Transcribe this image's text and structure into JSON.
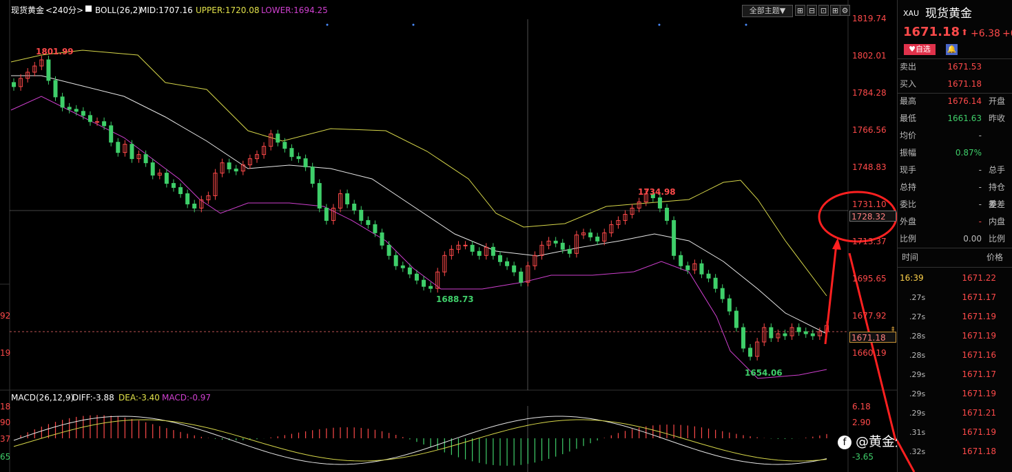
{
  "toolbar": {
    "symbol": "现货黄金",
    "period": "<240分>",
    "indicator": "BOLL(26,2)",
    "mid": "MID:1707.16",
    "upper": "UPPER:1720.08",
    "lower": "LOWER:1694.25",
    "theme_button": "全部主题▼"
  },
  "price_axis": [
    "1819.74",
    "1802.01",
    "1784.28",
    "1766.56",
    "1748.83",
    "1731.10",
    "1713.37",
    "1695.65",
    "1677.92",
    "1660.19"
  ],
  "left_axis_partial": [
    "92",
    "19"
  ],
  "crosshair_price": "1728.32",
  "current_price_tag": "1671.18",
  "annotations": {
    "high1": "1801.99",
    "low1": "1688.73",
    "high2": "1734.98",
    "low2": "1654.06"
  },
  "macd": {
    "label": "MACD(26,12,9)",
    "diff": "DIFF:-3.88",
    "dea": "DEA:-3.40",
    "macd": "MACD:-0.97",
    "axis": [
      "6.18",
      "2.90",
      "-3.65"
    ],
    "left_axis_partial": [
      "18",
      "90",
      "37",
      "65"
    ]
  },
  "quote": {
    "code": "XAU",
    "name": "现货黄金",
    "price": "1671.18",
    "arrow": "⬆",
    "change": "+6.38",
    "change_pct_partial": "+0",
    "fav_button": "自选",
    "rows": [
      {
        "label": "卖出",
        "value": "1671.53",
        "color": "red",
        "right": ""
      },
      {
        "label": "买入",
        "value": "1671.18",
        "color": "red",
        "right": ""
      },
      {
        "label": "最高",
        "value": "1676.14",
        "color": "red",
        "right": "开盘"
      },
      {
        "label": "最低",
        "value": "1661.63",
        "color": "green",
        "right": "昨收"
      },
      {
        "label": "均价",
        "value": "-",
        "color": "gray",
        "right": ""
      },
      {
        "label": "振幅",
        "value": "0.87%",
        "color": "green",
        "right": ""
      },
      {
        "label": "现手",
        "value": "-",
        "color": "gray",
        "right": "总手"
      },
      {
        "label": "总持",
        "value": "-",
        "color": "gray",
        "right": "持仓差"
      },
      {
        "label": "委比",
        "value": "-",
        "color": "gray",
        "right": "委差"
      },
      {
        "label": "外盘",
        "value": "-",
        "color": "red",
        "right": "内盘"
      },
      {
        "label": "比例",
        "value": "0.00",
        "color": "gray",
        "right": "比例"
      }
    ],
    "ticks_header": {
      "time": "时间",
      "price": "价格"
    },
    "ticks": [
      {
        "time": "16:39",
        "price": "1671.22"
      },
      {
        "time": ".27s",
        "price": "1671.17"
      },
      {
        "time": ".27s",
        "price": "1671.19"
      },
      {
        "time": ".28s",
        "price": "1671.19"
      },
      {
        "time": ".28s",
        "price": "1671.16"
      },
      {
        "time": ".29s",
        "price": "1671.17"
      },
      {
        "time": ".29s",
        "price": "1671.19"
      },
      {
        "time": ".29s",
        "price": "1671.21"
      },
      {
        "time": ".31s",
        "price": "1671.19"
      },
      {
        "time": ".32s",
        "price": "1671.18"
      }
    ]
  },
  "watermark": "@黄金外汇EA-Evo",
  "colors": {
    "up": "#ff4a4a",
    "down": "#3fcf6a",
    "mid": "#e8e8e8",
    "upper": "#d8d84a",
    "lower": "#d040d0",
    "annot": "#ff2020"
  }
}
